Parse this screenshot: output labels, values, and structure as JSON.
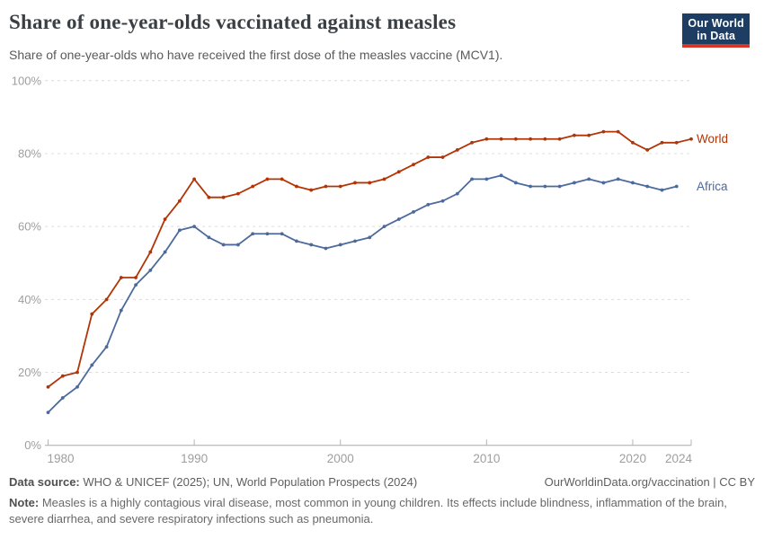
{
  "header": {
    "title": "Share of one-year-olds vaccinated against measles",
    "subtitle": "Share of one-year-olds who have received the first dose of the measles vaccine (MCV1).",
    "logo": {
      "line1": "Our World",
      "line2": "in Data"
    }
  },
  "chart_data": {
    "type": "line",
    "title": "Share of one-year-olds vaccinated against measles",
    "xlabel": "",
    "ylabel": "",
    "xlim": [
      1980,
      2024
    ],
    "ylim": [
      0,
      100
    ],
    "x_ticks": [
      1980,
      1990,
      2000,
      2010,
      2020,
      2024
    ],
    "y_ticks": [
      0,
      20,
      40,
      60,
      80,
      100
    ],
    "y_tick_suffix": "%",
    "grid": "horizontal-dashed",
    "legend_position": "end-of-line-labels",
    "series": [
      {
        "name": "World",
        "color": "#b13507",
        "years": [
          1980,
          1981,
          1982,
          1983,
          1984,
          1985,
          1986,
          1987,
          1988,
          1989,
          1990,
          1991,
          1992,
          1993,
          1994,
          1995,
          1996,
          1997,
          1998,
          1999,
          2000,
          2001,
          2002,
          2003,
          2004,
          2005,
          2006,
          2007,
          2008,
          2009,
          2010,
          2011,
          2012,
          2013,
          2014,
          2015,
          2016,
          2017,
          2018,
          2019,
          2020,
          2021,
          2022,
          2023,
          2024
        ],
        "values": [
          16,
          19,
          20,
          36,
          40,
          46,
          46,
          53,
          62,
          67,
          73,
          68,
          68,
          69,
          71,
          73,
          73,
          71,
          70,
          71,
          71,
          72,
          72,
          73,
          75,
          77,
          79,
          79,
          81,
          83,
          84,
          84,
          84,
          84,
          84,
          84,
          85,
          85,
          86,
          86,
          83,
          81,
          83,
          83,
          84
        ]
      },
      {
        "name": "Africa",
        "color": "#4c6a9c",
        "years": [
          1980,
          1981,
          1982,
          1983,
          1984,
          1985,
          1986,
          1987,
          1988,
          1989,
          1990,
          1991,
          1992,
          1993,
          1994,
          1995,
          1996,
          1997,
          1998,
          1999,
          2000,
          2001,
          2002,
          2003,
          2004,
          2005,
          2006,
          2007,
          2008,
          2009,
          2010,
          2011,
          2012,
          2013,
          2014,
          2015,
          2016,
          2017,
          2018,
          2019,
          2020,
          2021,
          2022,
          2023
        ],
        "values": [
          9,
          13,
          16,
          22,
          27,
          37,
          44,
          48,
          53,
          59,
          60,
          57,
          55,
          55,
          58,
          58,
          58,
          56,
          55,
          54,
          55,
          56,
          57,
          60,
          62,
          64,
          66,
          67,
          69,
          73,
          73,
          74,
          72,
          71,
          71,
          71,
          72,
          73,
          72,
          73,
          72,
          71,
          70,
          71
        ]
      }
    ]
  },
  "footer": {
    "datasource_label": "Data source:",
    "datasource": " WHO & UNICEF (2025); UN, World Population Prospects (2024)",
    "link": "OurWorldinData.org/vaccination | CC BY",
    "note_label": "Note:",
    "note": " Measles is a highly contagious viral disease, most common in young children. Its effects include blindness, inflammation of the brain, severe diarrhea, and severe respiratory infections such as pneumonia."
  }
}
